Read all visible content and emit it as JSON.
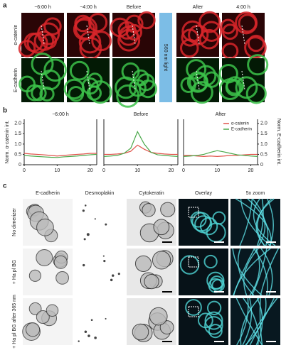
{
  "panel_a": {
    "label": "a",
    "time_labels": [
      "−6:00 h",
      "−4:00 h",
      "Before",
      "After",
      "4:00 h"
    ],
    "row_labels": [
      "α-catenin",
      "E-cadherin"
    ],
    "light_label": "560 nm light"
  },
  "panel_b": {
    "label": "b"
  },
  "chart_data": [
    {
      "type": "line",
      "title": "−6:00 h",
      "ylabel": "Norm. α-catenin int.",
      "x": [
        0,
        2,
        4,
        6,
        8,
        10,
        12,
        14,
        16,
        18,
        20,
        22
      ],
      "xlim": [
        0,
        22
      ],
      "xticks": [
        0,
        10,
        20
      ],
      "ylim": [
        0,
        2.2
      ],
      "yticks": [
        0,
        0.5,
        {
          "value": 1,
          "label": "1.0"
        },
        1.5,
        {
          "value": 2,
          "label": "2.0"
        }
      ],
      "series": [
        {
          "name": "α-catenin",
          "color": "#e0524a",
          "values": [
            0.55,
            0.52,
            0.5,
            0.48,
            0.45,
            0.42,
            0.45,
            0.48,
            0.5,
            0.52,
            0.55,
            0.55
          ]
        },
        {
          "name": "E-cadherin",
          "color": "#4aa84a",
          "values": [
            0.45,
            0.42,
            0.4,
            0.38,
            0.36,
            0.35,
            0.38,
            0.4,
            0.42,
            0.45,
            0.48,
            0.5
          ]
        }
      ]
    },
    {
      "type": "line",
      "title": "Before",
      "x": [
        0,
        2,
        4,
        6,
        8,
        10,
        12,
        14,
        16,
        18,
        20,
        22
      ],
      "xlim": [
        0,
        22
      ],
      "xticks": [
        0,
        10,
        20
      ],
      "ylim": [
        0,
        2.2
      ],
      "series": [
        {
          "name": "α-catenin",
          "color": "#e0524a",
          "values": [
            0.5,
            0.5,
            0.52,
            0.55,
            0.65,
            0.95,
            0.75,
            0.6,
            0.55,
            0.52,
            0.5,
            0.5
          ]
        },
        {
          "name": "E-cadherin",
          "color": "#4aa84a",
          "values": [
            0.4,
            0.42,
            0.45,
            0.55,
            0.8,
            1.6,
            1.0,
            0.6,
            0.48,
            0.45,
            0.42,
            0.4
          ]
        }
      ]
    },
    {
      "type": "line",
      "title": "After",
      "y2label": "Norm. E-cadherin int.",
      "legend": "upper right",
      "x": [
        0,
        2,
        4,
        6,
        8,
        10,
        12,
        14,
        16,
        18,
        20,
        22
      ],
      "xlim": [
        0,
        22
      ],
      "xticks": [
        0,
        10,
        20
      ],
      "ylim": [
        0,
        2.2
      ],
      "y2lim": [
        0,
        2.2
      ],
      "y2ticks": [
        0,
        0.5,
        {
          "value": 1,
          "label": "1.0"
        },
        1.5,
        {
          "value": 2,
          "label": "2.0"
        }
      ],
      "series": [
        {
          "name": "α-catenin",
          "color": "#e0524a",
          "values": [
            0.45,
            0.45,
            0.42,
            0.4,
            0.42,
            0.4,
            0.42,
            0.45,
            0.45,
            0.48,
            0.5,
            0.5
          ]
        },
        {
          "name": "E-cadherin",
          "color": "#4aa84a",
          "axis": "y2",
          "values": [
            0.4,
            0.42,
            0.45,
            0.5,
            0.6,
            0.68,
            0.62,
            0.55,
            0.48,
            0.45,
            0.42,
            0.4
          ]
        }
      ]
    }
  ],
  "panel_c": {
    "label": "c",
    "columns": [
      "E-cadherin",
      "Desmoplakin",
      "Cytokeratin",
      "Overlay",
      "5x zoom"
    ],
    "rows": [
      "No dimerizer",
      "+ Ha pl BG",
      "+ Ha pl BG after 365 nm"
    ]
  }
}
